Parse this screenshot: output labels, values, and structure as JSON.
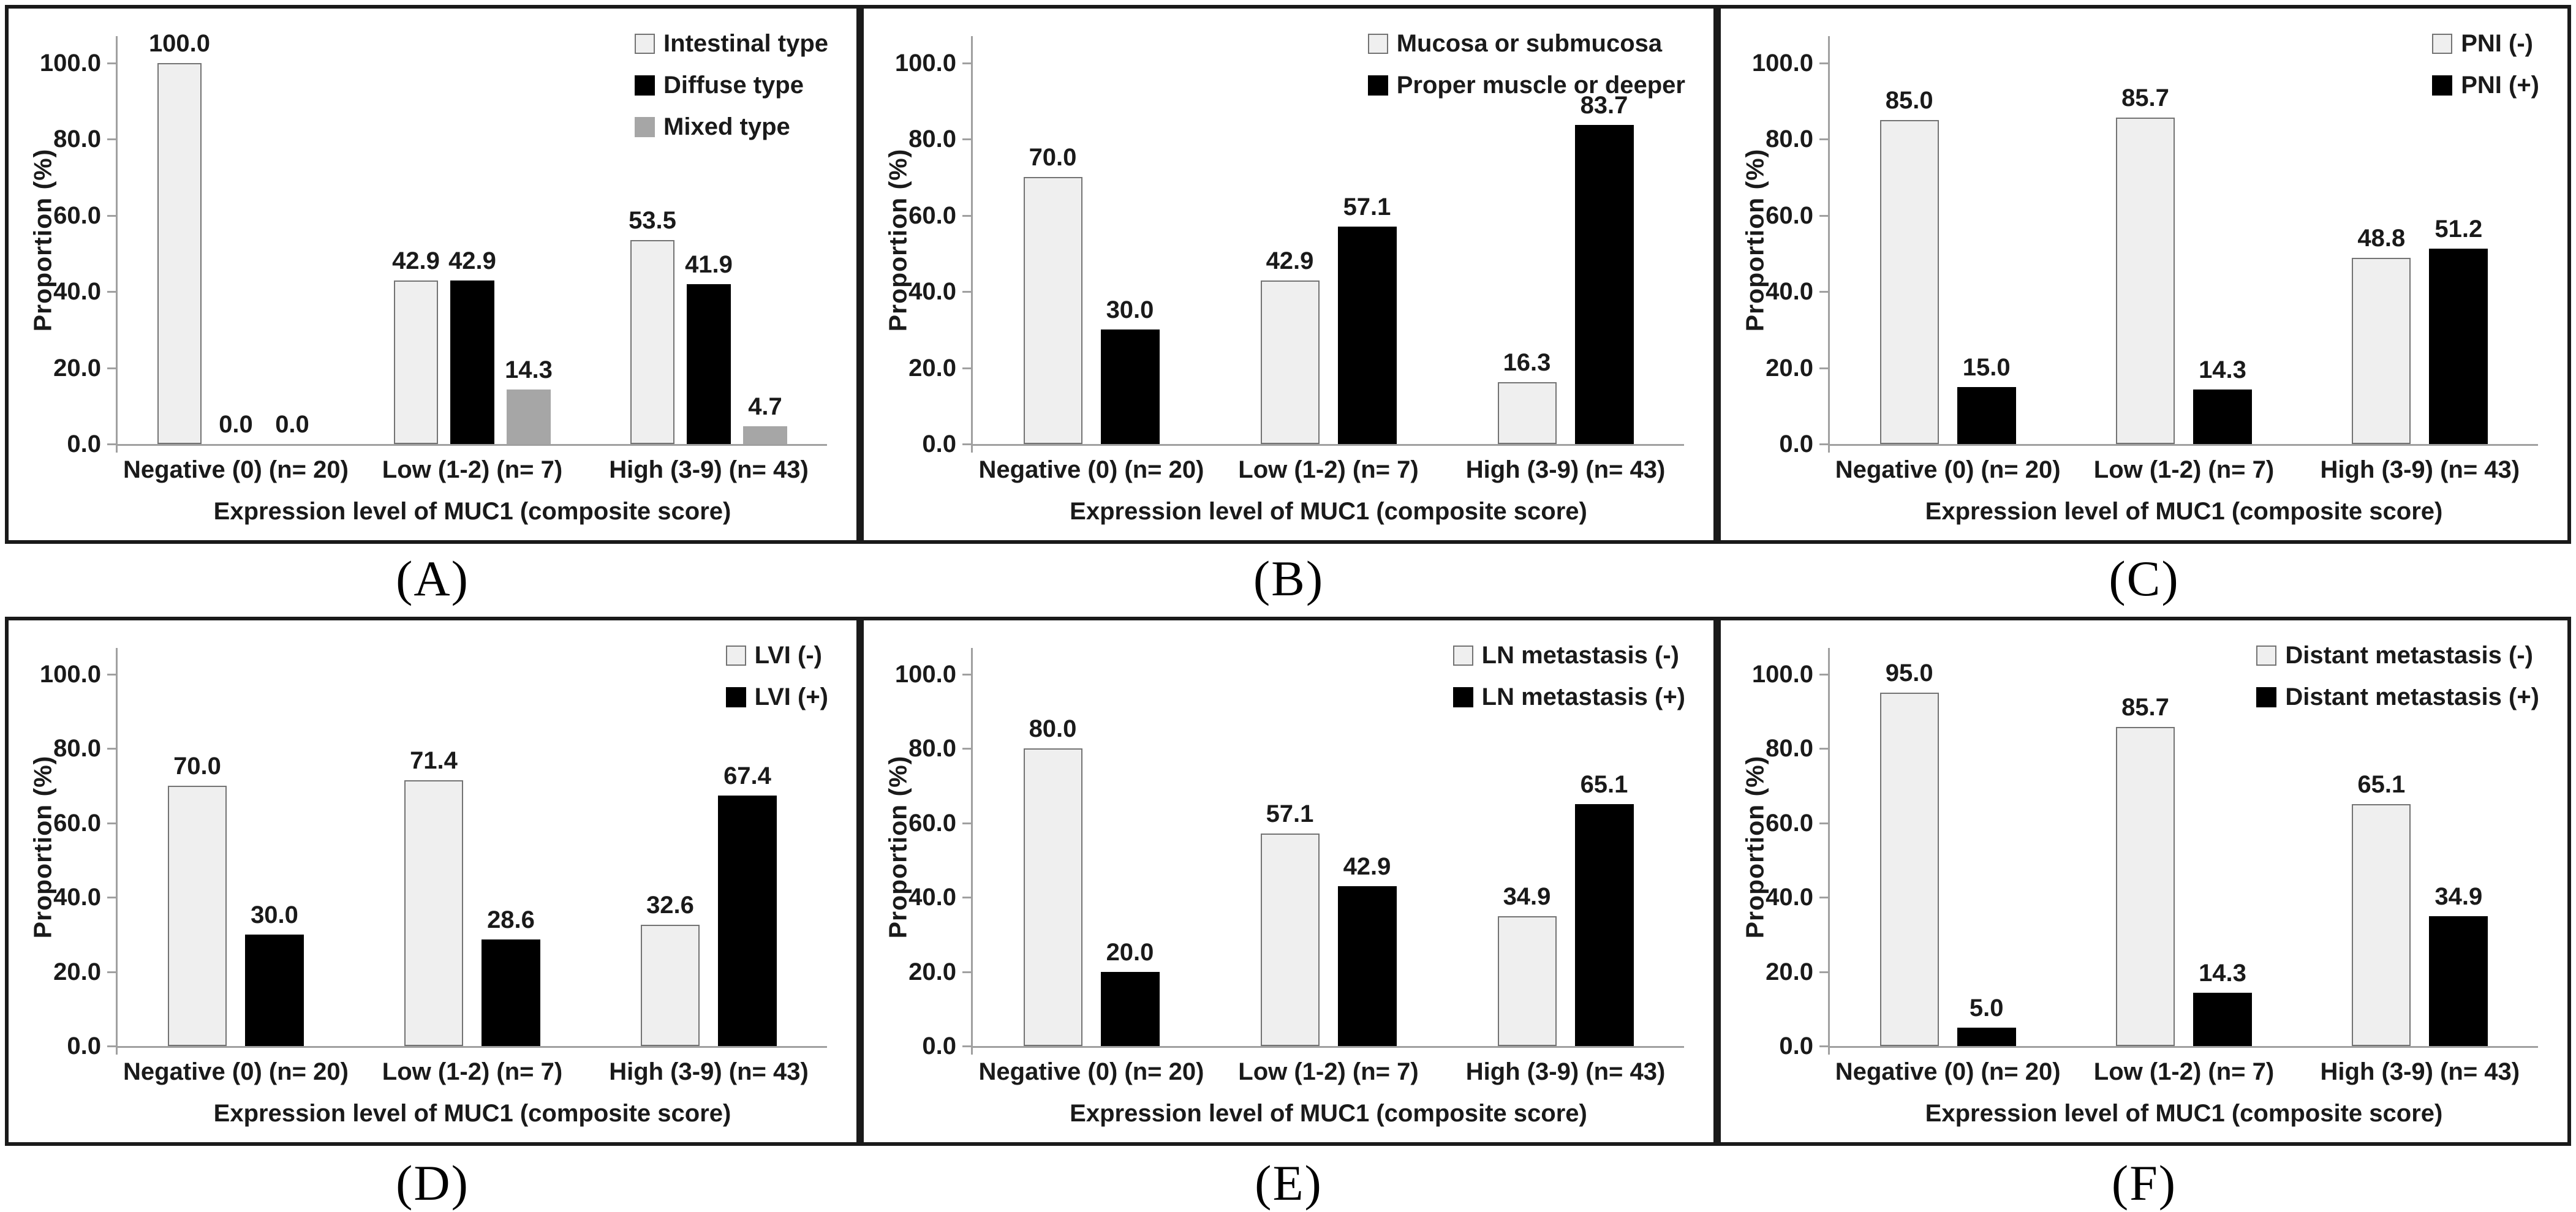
{
  "figure": {
    "background": "#ffffff",
    "panel_border_color": "#1a1a1a",
    "axis_color": "#a0a0a0",
    "text_color": "#1a1a1a",
    "bar_colors": {
      "light_fill": "#efefef",
      "light_border": "#737373",
      "black": "#000000",
      "gray": "#a6a6a6"
    }
  },
  "chart_data": [
    {
      "type": "bar",
      "panel_label": "(A)",
      "title": "",
      "categories": [
        "Negative (0) (n= 20)",
        "Low (1-2) (n= 7)",
        "High (3-9) (n= 43)"
      ],
      "series": [
        {
          "name": "Intestinal type",
          "values": [
            100.0,
            42.9,
            53.5
          ],
          "fill": "#efefef",
          "border": "#737373"
        },
        {
          "name": "Diffuse type",
          "values": [
            0.0,
            42.9,
            41.9
          ],
          "fill": "#000000",
          "border": "#000000"
        },
        {
          "name": "Mixed type",
          "values": [
            0.0,
            14.3,
            4.7
          ],
          "fill": "#a6a6a6",
          "border": "#a6a6a6"
        }
      ],
      "xlabel": "Expression level of MUC1 (composite score)",
      "ylabel": "Proportion (%)",
      "yticks": [
        0,
        20,
        40,
        60,
        80,
        100
      ],
      "ylim": [
        0,
        107
      ],
      "grid": false,
      "legend_position": "top-right"
    },
    {
      "type": "bar",
      "panel_label": "(B)",
      "title": "",
      "categories": [
        "Negative (0) (n= 20)",
        "Low (1-2) (n= 7)",
        "High (3-9) (n= 43)"
      ],
      "series": [
        {
          "name": "Mucosa or submucosa",
          "values": [
            70.0,
            42.9,
            16.3
          ],
          "fill": "#efefef",
          "border": "#737373"
        },
        {
          "name": "Proper muscle or deeper",
          "values": [
            30.0,
            57.1,
            83.7
          ],
          "fill": "#000000",
          "border": "#000000"
        }
      ],
      "xlabel": "Expression level of MUC1 (composite score)",
      "ylabel": "Proportion (%)",
      "yticks": [
        0,
        20,
        40,
        60,
        80,
        100
      ],
      "ylim": [
        0,
        107
      ],
      "grid": false,
      "legend_position": "top-right"
    },
    {
      "type": "bar",
      "panel_label": "(C)",
      "title": "",
      "categories": [
        "Negative (0) (n= 20)",
        "Low (1-2) (n= 7)",
        "High (3-9) (n= 43)"
      ],
      "series": [
        {
          "name": "PNI (-)",
          "values": [
            85.0,
            85.7,
            48.8
          ],
          "fill": "#efefef",
          "border": "#737373"
        },
        {
          "name": "PNI (+)",
          "values": [
            15.0,
            14.3,
            51.2
          ],
          "fill": "#000000",
          "border": "#000000"
        }
      ],
      "xlabel": "Expression level of MUC1 (composite score)",
      "ylabel": "Proportion (%)",
      "yticks": [
        0,
        20,
        40,
        60,
        80,
        100
      ],
      "ylim": [
        0,
        107
      ],
      "grid": false,
      "legend_position": "top-right"
    },
    {
      "type": "bar",
      "panel_label": "(D)",
      "title": "",
      "categories": [
        "Negative (0) (n= 20)",
        "Low (1-2) (n= 7)",
        "High (3-9) (n= 43)"
      ],
      "series": [
        {
          "name": "LVI (-)",
          "values": [
            70.0,
            71.4,
            32.6
          ],
          "fill": "#efefef",
          "border": "#737373"
        },
        {
          "name": "LVI (+)",
          "values": [
            30.0,
            28.6,
            67.4
          ],
          "fill": "#000000",
          "border": "#000000"
        }
      ],
      "xlabel": "Expression level of MUC1 (composite score)",
      "ylabel": "Proportion (%)",
      "yticks": [
        0,
        20,
        40,
        60,
        80,
        100
      ],
      "ylim": [
        0,
        107
      ],
      "grid": false,
      "legend_position": "top-right"
    },
    {
      "type": "bar",
      "panel_label": "(E)",
      "title": "",
      "categories": [
        "Negative (0) (n= 20)",
        "Low (1-2) (n= 7)",
        "High (3-9) (n= 43)"
      ],
      "series": [
        {
          "name": "LN metastasis (-)",
          "values": [
            80.0,
            57.1,
            34.9
          ],
          "fill": "#efefef",
          "border": "#737373"
        },
        {
          "name": "LN metastasis (+)",
          "values": [
            20.0,
            42.9,
            65.1
          ],
          "fill": "#000000",
          "border": "#000000"
        }
      ],
      "xlabel": "Expression level of MUC1 (composite score)",
      "ylabel": "Proportion (%)",
      "yticks": [
        0,
        20,
        40,
        60,
        80,
        100
      ],
      "ylim": [
        0,
        107
      ],
      "grid": false,
      "legend_position": "top-right"
    },
    {
      "type": "bar",
      "panel_label": "(F)",
      "title": "",
      "categories": [
        "Negative (0) (n= 20)",
        "Low (1-2) (n= 7)",
        "High (3-9) (n= 43)"
      ],
      "series": [
        {
          "name": "Distant metastasis (-)",
          "values": [
            95.0,
            85.7,
            65.1
          ],
          "fill": "#efefef",
          "border": "#737373"
        },
        {
          "name": "Distant metastasis (+)",
          "values": [
            5.0,
            14.3,
            34.9
          ],
          "fill": "#000000",
          "border": "#000000"
        }
      ],
      "xlabel": "Expression level of MUC1 (composite score)",
      "ylabel": "Proportion (%)",
      "yticks": [
        0,
        20,
        40,
        60,
        80,
        100
      ],
      "ylim": [
        0,
        107
      ],
      "grid": false,
      "legend_position": "top-right"
    }
  ]
}
